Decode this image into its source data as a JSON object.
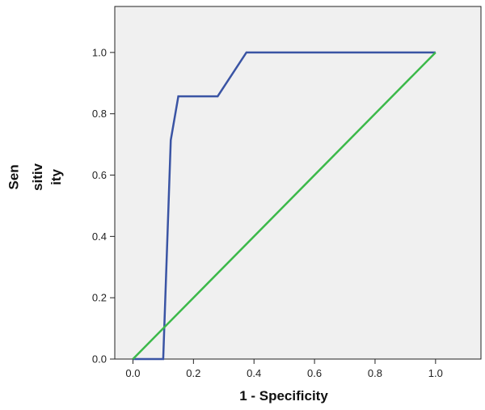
{
  "chart_data": {
    "type": "line",
    "xlabel": "1 - Specificity",
    "ylabel_lines": [
      "Sen",
      "sitiv",
      "ity"
    ],
    "xlim": [
      -0.06,
      1.15
    ],
    "ylim": [
      0.0,
      1.15
    ],
    "x_ticks": [
      "0.0",
      "0.2",
      "0.4",
      "0.6",
      "0.8",
      "1.0"
    ],
    "y_ticks": [
      "0.0",
      "0.2",
      "0.4",
      "0.6",
      "0.8",
      "1.0"
    ],
    "grid": false,
    "plot_background": "#f0f0f0",
    "series": [
      {
        "color": "#3a54a4",
        "x": [
          0.0,
          0.1,
          0.125,
          0.15,
          0.28,
          0.375,
          1.0
        ],
        "y": [
          0.0,
          0.0,
          0.714,
          0.857,
          0.857,
          1.0,
          1.0
        ]
      },
      {
        "color": "#3cb94a",
        "x": [
          0.0,
          1.0
        ],
        "y": [
          0.0,
          1.0
        ]
      }
    ]
  }
}
